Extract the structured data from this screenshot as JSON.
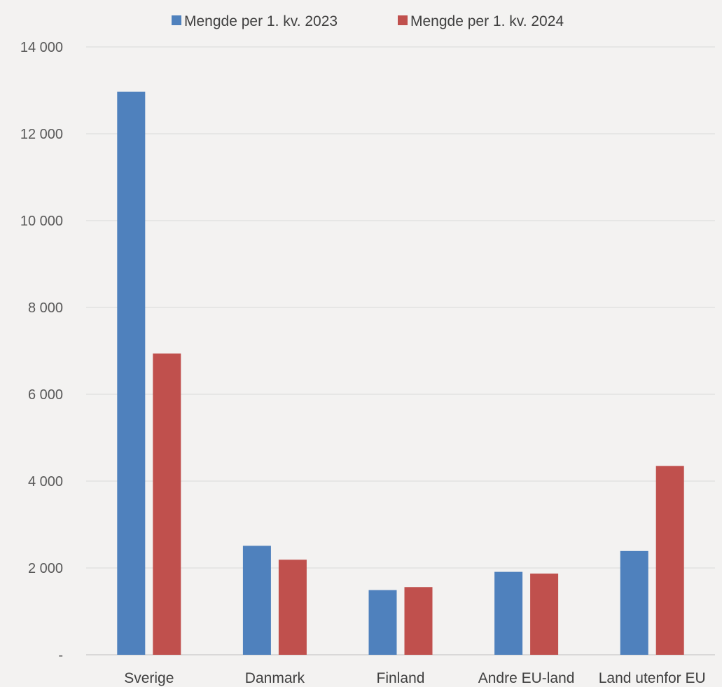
{
  "chart_data": {
    "type": "bar",
    "categories": [
      "Sverige",
      "Danmark",
      "Finland",
      "Andre EU-land",
      "Land utenfor EU"
    ],
    "series": [
      {
        "name": "Mengde per 1. kv. 2023",
        "color": "#4f81bd",
        "values": [
          12970,
          2510,
          1490,
          1910,
          2390
        ]
      },
      {
        "name": "Mengde per 1. kv. 2024",
        "color": "#c0504d",
        "values": [
          6940,
          2190,
          1560,
          1870,
          4350
        ]
      }
    ],
    "ylim": [
      0,
      14000
    ],
    "yticks": [
      0,
      2000,
      4000,
      6000,
      8000,
      10000,
      12000,
      14000
    ],
    "ytick_labels": [
      "-",
      "2 000",
      "4 000",
      "6 000",
      "8 000",
      "10 000",
      "12 000",
      "14 000"
    ],
    "grid": true,
    "legend_position": "top"
  }
}
